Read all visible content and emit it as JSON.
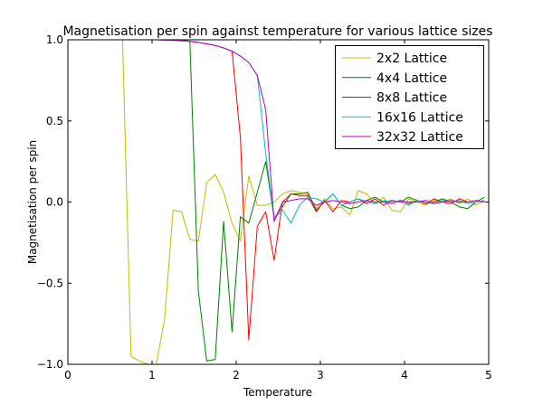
{
  "chart_data": {
    "type": "line",
    "title": "Magnetisation per spin against temperature for various lattice sizes",
    "xlabel": "Temperature",
    "ylabel": "Magnetisation per spin",
    "xlim": [
      0,
      5
    ],
    "ylim": [
      -1,
      1
    ],
    "grid": false,
    "legend": "upper right",
    "x_ticks": [
      0,
      1,
      2,
      3,
      4,
      5
    ],
    "x_tick_labels": [
      "0",
      "1",
      "2",
      "3",
      "4",
      "5"
    ],
    "y_ticks": [
      -1,
      -0.5,
      0,
      0.5,
      1
    ],
    "y_tick_labels": [
      "−1.0",
      "−0.5",
      "0.0",
      "0.5",
      "1.0"
    ],
    "x": [
      0.05,
      0.15,
      0.25,
      0.35,
      0.45,
      0.55,
      0.65,
      0.75,
      0.85,
      0.95,
      1.05,
      1.15,
      1.25,
      1.35,
      1.45,
      1.55,
      1.65,
      1.75,
      1.85,
      1.95,
      2.05,
      2.15,
      2.25,
      2.35,
      2.45,
      2.55,
      2.65,
      2.75,
      2.85,
      2.95,
      3.05,
      3.15,
      3.25,
      3.35,
      3.45,
      3.55,
      3.65,
      3.75,
      3.85,
      3.95,
      4.05,
      4.15,
      4.25,
      4.35,
      4.45,
      4.55,
      4.65,
      4.75,
      4.85,
      4.95
    ],
    "series": [
      {
        "name": "2x2 Lattice",
        "color": "#bfbf00",
        "values": [
          1.0,
          1.0,
          1.0,
          1.0,
          1.0,
          1.0,
          1.0,
          -0.95,
          -0.98,
          -1.0,
          -1.0,
          -0.72,
          -0.05,
          -0.06,
          -0.23,
          -0.24,
          0.12,
          0.17,
          0.06,
          -0.13,
          -0.24,
          0.16,
          -0.02,
          -0.02,
          0.0,
          0.05,
          0.07,
          0.06,
          0.05,
          -0.04,
          0.02,
          -0.04,
          -0.03,
          -0.08,
          0.07,
          0.05,
          -0.01,
          0.03,
          -0.05,
          -0.06,
          0.02,
          0.0,
          -0.02,
          0.01,
          0.0,
          0.02,
          -0.01,
          0.02,
          -0.02,
          0.01
        ]
      },
      {
        "name": "4x4 Lattice",
        "color": "#008000",
        "values": [
          1.0,
          1.0,
          1.0,
          1.0,
          1.0,
          1.0,
          1.0,
          1.0,
          1.0,
          1.0,
          1.0,
          1.0,
          1.0,
          1.0,
          0.99,
          -0.55,
          -0.98,
          -0.97,
          -0.12,
          -0.8,
          -0.09,
          -0.13,
          0.06,
          0.25,
          -0.1,
          -0.03,
          0.05,
          0.05,
          0.06,
          -0.05,
          0.0,
          0.05,
          -0.02,
          -0.04,
          -0.03,
          0.01,
          0.03,
          0.0,
          0.01,
          0.0,
          0.03,
          0.01,
          -0.01,
          0.0,
          0.02,
          0.0,
          -0.03,
          -0.04,
          0.0,
          0.03
        ]
      },
      {
        "name": "8x8 Lattice",
        "color": "#ff0000",
        "values": [
          1.0,
          1.0,
          1.0,
          1.0,
          1.0,
          1.0,
          1.0,
          1.0,
          1.0,
          1.0,
          1.0,
          0.999,
          0.997,
          0.994,
          0.99,
          0.984,
          0.975,
          0.965,
          0.95,
          0.93,
          0.4,
          -0.85,
          -0.15,
          -0.06,
          -0.36,
          0.0,
          0.05,
          0.04,
          0.04,
          -0.06,
          0.01,
          -0.06,
          0.01,
          0.0,
          0.02,
          -0.01,
          0.02,
          -0.02,
          0.01,
          0.0,
          -0.01,
          0.01,
          -0.01,
          0.02,
          0.0,
          -0.01,
          0.02,
          0.0,
          0.01,
          0.0
        ]
      },
      {
        "name": "16x16 Lattice",
        "color": "#00bfbf",
        "values": [
          1.0,
          1.0,
          1.0,
          1.0,
          1.0,
          1.0,
          1.0,
          1.0,
          1.0,
          1.0,
          1.0,
          0.999,
          0.997,
          0.994,
          0.99,
          0.984,
          0.975,
          0.965,
          0.95,
          0.93,
          0.9,
          0.86,
          0.78,
          0.3,
          -0.1,
          -0.05,
          -0.13,
          -0.02,
          0.03,
          0.02,
          0.0,
          0.05,
          -0.02,
          0.0,
          0.02,
          0.0,
          -0.01,
          0.01,
          0.0,
          0.01,
          -0.02,
          0.01,
          0.0,
          -0.01,
          0.01,
          0.0,
          0.01,
          -0.01,
          0.0,
          0.01
        ]
      },
      {
        "name": "32x32 Lattice",
        "color": "#bf00bf",
        "values": [
          1.0,
          1.0,
          1.0,
          1.0,
          1.0,
          1.0,
          1.0,
          1.0,
          1.0,
          1.0,
          1.0,
          0.999,
          0.997,
          0.994,
          0.99,
          0.984,
          0.975,
          0.965,
          0.95,
          0.93,
          0.9,
          0.86,
          0.78,
          0.57,
          -0.12,
          0.0,
          0.01,
          0.02,
          0.02,
          -0.02,
          0.0,
          0.01,
          0.0,
          -0.01,
          0.0,
          0.01,
          0.0,
          0.0,
          -0.01,
          0.01,
          0.0,
          0.0,
          0.01,
          -0.01,
          0.0,
          0.01,
          0.0,
          0.0,
          0.01,
          0.0
        ]
      }
    ]
  }
}
